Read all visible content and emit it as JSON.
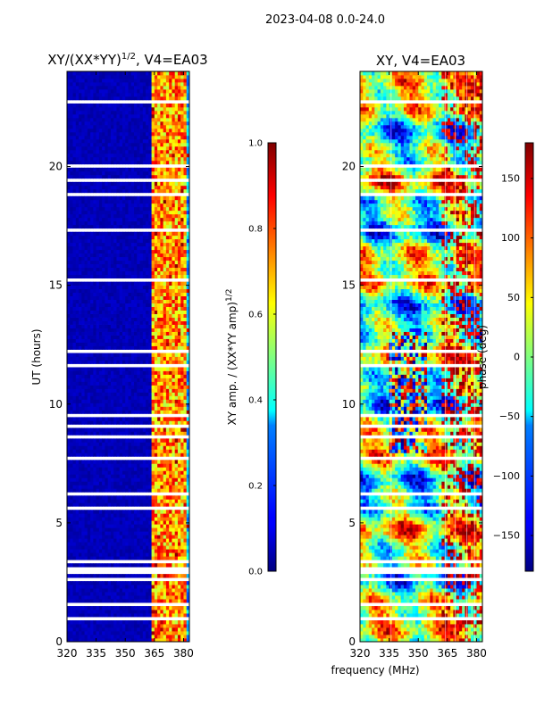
{
  "figure": {
    "suptitle": "2023-04-08 0.0-24.0",
    "xlabel": "frequency (MHz)"
  },
  "colormap": "jet",
  "chart_data": [
    {
      "type": "heatmap",
      "title_main": "XY/(XX*YY)",
      "title_sup": "1/2",
      "title_tail": ", V4=EA03",
      "xlim": [
        320,
        383
      ],
      "xticks": [
        320,
        335,
        350,
        365,
        380
      ],
      "ylim": [
        0,
        24
      ],
      "yticks": [
        0,
        5,
        10,
        15,
        20
      ],
      "ylabel": "UT (hours)",
      "colorbar": {
        "label_main": "XY amp. / (XX*YY amp)",
        "label_sup": "1/2",
        "range": [
          0,
          1
        ],
        "ticks": [
          "0.0",
          "0.2",
          "0.4",
          "0.6",
          "0.8",
          "1.0"
        ]
      },
      "bright_channels_mhz": [
        364,
        365,
        367,
        369,
        371,
        373,
        375,
        377,
        379,
        380
      ]
    },
    {
      "type": "heatmap",
      "title_main": "XY, V4=EA03",
      "xlim": [
        320,
        383
      ],
      "xticks": [
        320,
        335,
        350,
        365,
        380
      ],
      "ylim": [
        0,
        24
      ],
      "yticks": [
        0,
        5,
        10,
        15,
        20
      ],
      "colorbar": {
        "label": "phase (deg)",
        "range": [
          -180,
          180
        ],
        "ticks": [
          "150",
          "100",
          "50",
          "0",
          "−50",
          "−100",
          "−150"
        ],
        "tick_values": [
          150,
          100,
          50,
          0,
          -50,
          -100,
          -150
        ]
      },
      "vertical_lines_mhz": [
        336,
        364,
        369,
        375,
        379
      ]
    }
  ],
  "flagged_gaps_ut_hours": [
    [
      0.4,
      0.45
    ],
    [
      0.95,
      1.0
    ],
    [
      1.45,
      1.6
    ],
    [
      2.6,
      2.65
    ],
    [
      2.9,
      3.15
    ],
    [
      3.35,
      3.4
    ],
    [
      3.7,
      3.75
    ],
    [
      4.5,
      4.55
    ],
    [
      5.35,
      5.45
    ],
    [
      5.6,
      5.65
    ],
    [
      6.2,
      6.25
    ],
    [
      6.6,
      6.65
    ],
    [
      7.0,
      7.05
    ],
    [
      7.7,
      7.75
    ],
    [
      8.1,
      8.15
    ],
    [
      8.6,
      8.65
    ],
    [
      9.05,
      9.1
    ],
    [
      9.5,
      9.55
    ],
    [
      10.2,
      10.25
    ],
    [
      11.2,
      11.3
    ],
    [
      11.6,
      11.65
    ],
    [
      12.2,
      12.25
    ],
    [
      12.55,
      12.6
    ],
    [
      13.0,
      13.05
    ],
    [
      13.5,
      13.55
    ],
    [
      14.1,
      14.15
    ],
    [
      14.5,
      14.55
    ],
    [
      15.2,
      15.25
    ],
    [
      15.6,
      15.65
    ],
    [
      16.2,
      16.25
    ],
    [
      16.8,
      16.85
    ],
    [
      17.3,
      17.35
    ],
    [
      17.8,
      17.85
    ],
    [
      18.3,
      18.35
    ],
    [
      18.8,
      18.9
    ],
    [
      19.4,
      19.45
    ],
    [
      20.0,
      20.05
    ],
    [
      20.5,
      20.55
    ],
    [
      21.1,
      21.15
    ],
    [
      21.6,
      21.65
    ],
    [
      22.0,
      22.05
    ],
    [
      22.3,
      22.35
    ],
    [
      22.7,
      22.8
    ],
    [
      23.1,
      23.15
    ]
  ]
}
